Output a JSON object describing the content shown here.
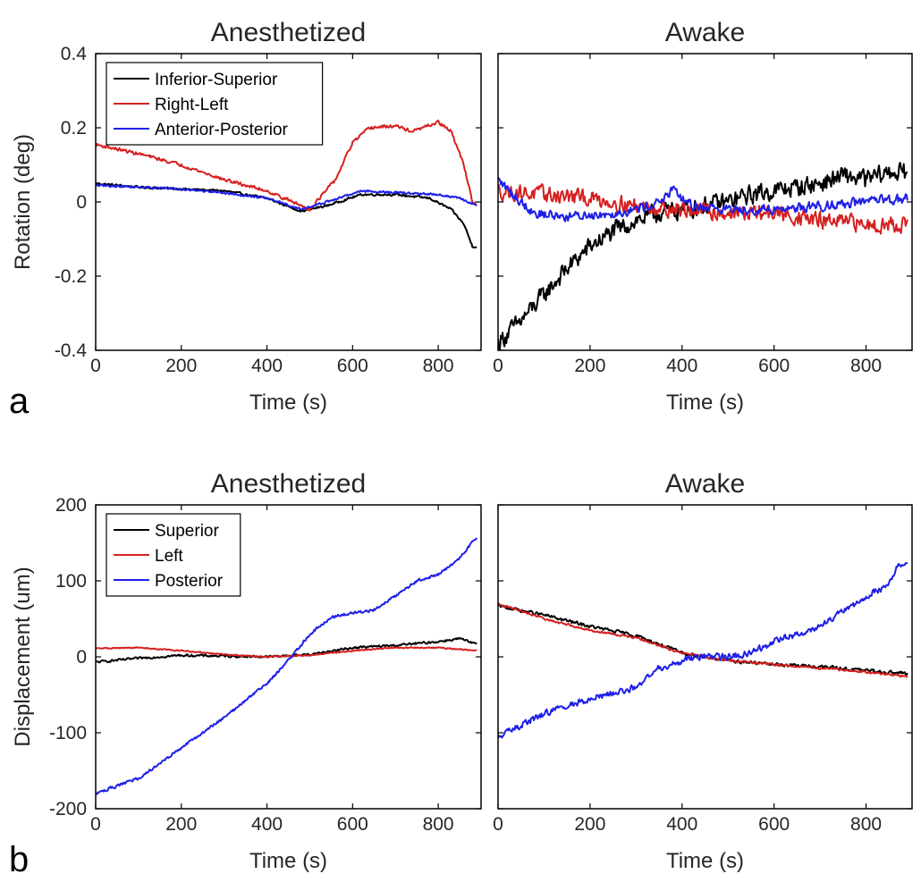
{
  "panels": {
    "a": "a",
    "b": "b"
  },
  "chart_data": [
    {
      "type": "line",
      "title": "Anesthetized",
      "xlabel": "Time (s)",
      "ylabel": "Rotation (deg)",
      "xlim": [
        0,
        900
      ],
      "ylim": [
        -0.4,
        0.4
      ],
      "xticks": [
        0,
        200,
        400,
        600,
        800
      ],
      "xtick_labels": [
        "0",
        "200",
        "400",
        "600",
        "800"
      ],
      "yticks": [
        -0.4,
        -0.2,
        0,
        0.2,
        0.4
      ],
      "ytick_labels": [
        "-0.4",
        "-0.2",
        "0",
        "0.2",
        "0.4"
      ],
      "legend": {
        "placement": "top-left",
        "entries": [
          "Inferior-Superior",
          "Right-Left",
          "Anterior-Posterior"
        ]
      },
      "series": [
        {
          "name": "Inferior-Superior",
          "color": "#000000",
          "noise": 0.004,
          "points": [
            [
              0,
              0.05
            ],
            [
              100,
              0.04
            ],
            [
              200,
              0.035
            ],
            [
              300,
              0.03
            ],
            [
              400,
              0.01
            ],
            [
              480,
              -0.025
            ],
            [
              540,
              -0.01
            ],
            [
              620,
              0.02
            ],
            [
              700,
              0.02
            ],
            [
              780,
              0.01
            ],
            [
              830,
              -0.02
            ],
            [
              860,
              -0.06
            ],
            [
              880,
              -0.12
            ],
            [
              890,
              -0.12
            ]
          ]
        },
        {
          "name": "Right-Left",
          "color": "#d62020",
          "noise": 0.006,
          "points": [
            [
              0,
              0.155
            ],
            [
              100,
              0.13
            ],
            [
              200,
              0.1
            ],
            [
              300,
              0.06
            ],
            [
              400,
              0.03
            ],
            [
              460,
              0.0
            ],
            [
              500,
              -0.02
            ],
            [
              560,
              0.06
            ],
            [
              600,
              0.16
            ],
            [
              640,
              0.2
            ],
            [
              700,
              0.205
            ],
            [
              740,
              0.19
            ],
            [
              800,
              0.215
            ],
            [
              830,
              0.19
            ],
            [
              860,
              0.1
            ],
            [
              880,
              0.0
            ],
            [
              890,
              -0.01
            ]
          ]
        },
        {
          "name": "Anterior-Posterior",
          "color": "#1f1fe8",
          "noise": 0.004,
          "points": [
            [
              0,
              0.045
            ],
            [
              100,
              0.04
            ],
            [
              200,
              0.035
            ],
            [
              300,
              0.025
            ],
            [
              400,
              0.01
            ],
            [
              480,
              -0.02
            ],
            [
              540,
              0.0
            ],
            [
              620,
              0.03
            ],
            [
              700,
              0.025
            ],
            [
              800,
              0.02
            ],
            [
              850,
              0.01
            ],
            [
              890,
              -0.01
            ]
          ]
        }
      ]
    },
    {
      "type": "line",
      "title": "Awake",
      "xlabel": "Time (s)",
      "ylabel": "",
      "xlim": [
        0,
        900
      ],
      "ylim": [
        -0.4,
        0.4
      ],
      "xticks": [
        0,
        200,
        400,
        600,
        800
      ],
      "xtick_labels": [
        "0",
        "200",
        "400",
        "600",
        "800"
      ],
      "yticks": [
        -0.4,
        -0.2,
        0,
        0.2,
        0.4
      ],
      "ytick_labels": [],
      "series": [
        {
          "name": "Inferior-Superior",
          "color": "#000000",
          "noise": 0.035,
          "points": [
            [
              0,
              -0.38
            ],
            [
              50,
              -0.32
            ],
            [
              100,
              -0.25
            ],
            [
              150,
              -0.18
            ],
            [
              200,
              -0.12
            ],
            [
              250,
              -0.08
            ],
            [
              300,
              -0.05
            ],
            [
              350,
              -0.03
            ],
            [
              400,
              -0.02
            ],
            [
              450,
              -0.01
            ],
            [
              500,
              0.0
            ],
            [
              550,
              0.02
            ],
            [
              600,
              0.03
            ],
            [
              650,
              0.04
            ],
            [
              700,
              0.05
            ],
            [
              750,
              0.07
            ],
            [
              800,
              0.06
            ],
            [
              850,
              0.08
            ],
            [
              890,
              0.08
            ]
          ]
        },
        {
          "name": "Right-Left",
          "color": "#d62020",
          "noise": 0.03,
          "points": [
            [
              0,
              0.03
            ],
            [
              100,
              0.02
            ],
            [
              200,
              0.01
            ],
            [
              300,
              -0.01
            ],
            [
              400,
              -0.02
            ],
            [
              500,
              -0.03
            ],
            [
              600,
              -0.03
            ],
            [
              700,
              -0.05
            ],
            [
              800,
              -0.06
            ],
            [
              890,
              -0.06
            ]
          ]
        },
        {
          "name": "Anterior-Posterior",
          "color": "#1f1fe8",
          "noise": 0.018,
          "points": [
            [
              0,
              0.06
            ],
            [
              40,
              0.01
            ],
            [
              80,
              -0.03
            ],
            [
              150,
              -0.04
            ],
            [
              250,
              -0.03
            ],
            [
              300,
              -0.02
            ],
            [
              350,
              0.0
            ],
            [
              380,
              0.03
            ],
            [
              420,
              -0.01
            ],
            [
              500,
              -0.02
            ],
            [
              600,
              -0.02
            ],
            [
              700,
              -0.01
            ],
            [
              800,
              0.0
            ],
            [
              890,
              0.01
            ]
          ]
        }
      ]
    },
    {
      "type": "line",
      "title": "Anesthetized",
      "xlabel": "Time (s)",
      "ylabel": "Displacement (um)",
      "xlim": [
        0,
        900
      ],
      "ylim": [
        -200,
        200
      ],
      "xticks": [
        0,
        200,
        400,
        600,
        800
      ],
      "xtick_labels": [
        "0",
        "200",
        "400",
        "600",
        "800"
      ],
      "yticks": [
        -200,
        -100,
        0,
        100,
        200
      ],
      "ytick_labels": [
        "-200",
        "-100",
        "0",
        "100",
        "200"
      ],
      "legend": {
        "placement": "top-left",
        "entries": [
          "Superior",
          "Left",
          "Posterior"
        ]
      },
      "series": [
        {
          "name": "Superior",
          "color": "#000000",
          "noise": 2.0,
          "points": [
            [
              0,
              -7
            ],
            [
              100,
              -2
            ],
            [
              200,
              2
            ],
            [
              300,
              1
            ],
            [
              400,
              0
            ],
            [
              500,
              3
            ],
            [
              600,
              12
            ],
            [
              700,
              15
            ],
            [
              800,
              20
            ],
            [
              850,
              24
            ],
            [
              890,
              16
            ]
          ]
        },
        {
          "name": "Left",
          "color": "#d62020",
          "noise": 1.0,
          "points": [
            [
              0,
              11
            ],
            [
              100,
              12
            ],
            [
              200,
              8
            ],
            [
              300,
              3
            ],
            [
              400,
              0
            ],
            [
              500,
              2
            ],
            [
              600,
              8
            ],
            [
              700,
              12
            ],
            [
              800,
              12
            ],
            [
              890,
              8
            ]
          ]
        },
        {
          "name": "Posterior",
          "color": "#1f1fe8",
          "noise": 2.5,
          "points": [
            [
              0,
              -180
            ],
            [
              100,
              -160
            ],
            [
              200,
              -120
            ],
            [
              300,
              -80
            ],
            [
              400,
              -35
            ],
            [
              450,
              -5
            ],
            [
              500,
              30
            ],
            [
              550,
              52
            ],
            [
              600,
              58
            ],
            [
              650,
              62
            ],
            [
              700,
              80
            ],
            [
              750,
              100
            ],
            [
              800,
              108
            ],
            [
              850,
              130
            ],
            [
              890,
              158
            ]
          ]
        }
      ]
    },
    {
      "type": "line",
      "title": "Awake",
      "xlabel": "Time (s)",
      "ylabel": "",
      "xlim": [
        0,
        900
      ],
      "ylim": [
        -200,
        200
      ],
      "xticks": [
        0,
        200,
        400,
        600,
        800
      ],
      "xtick_labels": [
        "0",
        "200",
        "400",
        "600",
        "800"
      ],
      "yticks": [
        -200,
        -100,
        0,
        100,
        200
      ],
      "ytick_labels": [],
      "series": [
        {
          "name": "Superior",
          "color": "#000000",
          "noise": 3.0,
          "points": [
            [
              0,
              67
            ],
            [
              100,
              55
            ],
            [
              200,
              40
            ],
            [
              300,
              28
            ],
            [
              400,
              5
            ],
            [
              500,
              -5
            ],
            [
              600,
              -10
            ],
            [
              700,
              -13
            ],
            [
              800,
              -18
            ],
            [
              890,
              -22
            ]
          ]
        },
        {
          "name": "Left",
          "color": "#d62020",
          "noise": 2.0,
          "points": [
            [
              0,
              70
            ],
            [
              100,
              50
            ],
            [
              200,
              35
            ],
            [
              300,
              25
            ],
            [
              400,
              5
            ],
            [
              500,
              -5
            ],
            [
              600,
              -10
            ],
            [
              700,
              -15
            ],
            [
              800,
              -20
            ],
            [
              890,
              -26
            ]
          ]
        },
        {
          "name": "Posterior",
          "color": "#1f1fe8",
          "noise": 6.0,
          "points": [
            [
              0,
              -105
            ],
            [
              50,
              -90
            ],
            [
              100,
              -75
            ],
            [
              200,
              -55
            ],
            [
              300,
              -40
            ],
            [
              350,
              -15
            ],
            [
              400,
              -5
            ],
            [
              450,
              0
            ],
            [
              500,
              0
            ],
            [
              550,
              5
            ],
            [
              600,
              20
            ],
            [
              700,
              40
            ],
            [
              750,
              60
            ],
            [
              800,
              80
            ],
            [
              850,
              95
            ],
            [
              870,
              120
            ],
            [
              890,
              125
            ]
          ]
        }
      ]
    }
  ]
}
